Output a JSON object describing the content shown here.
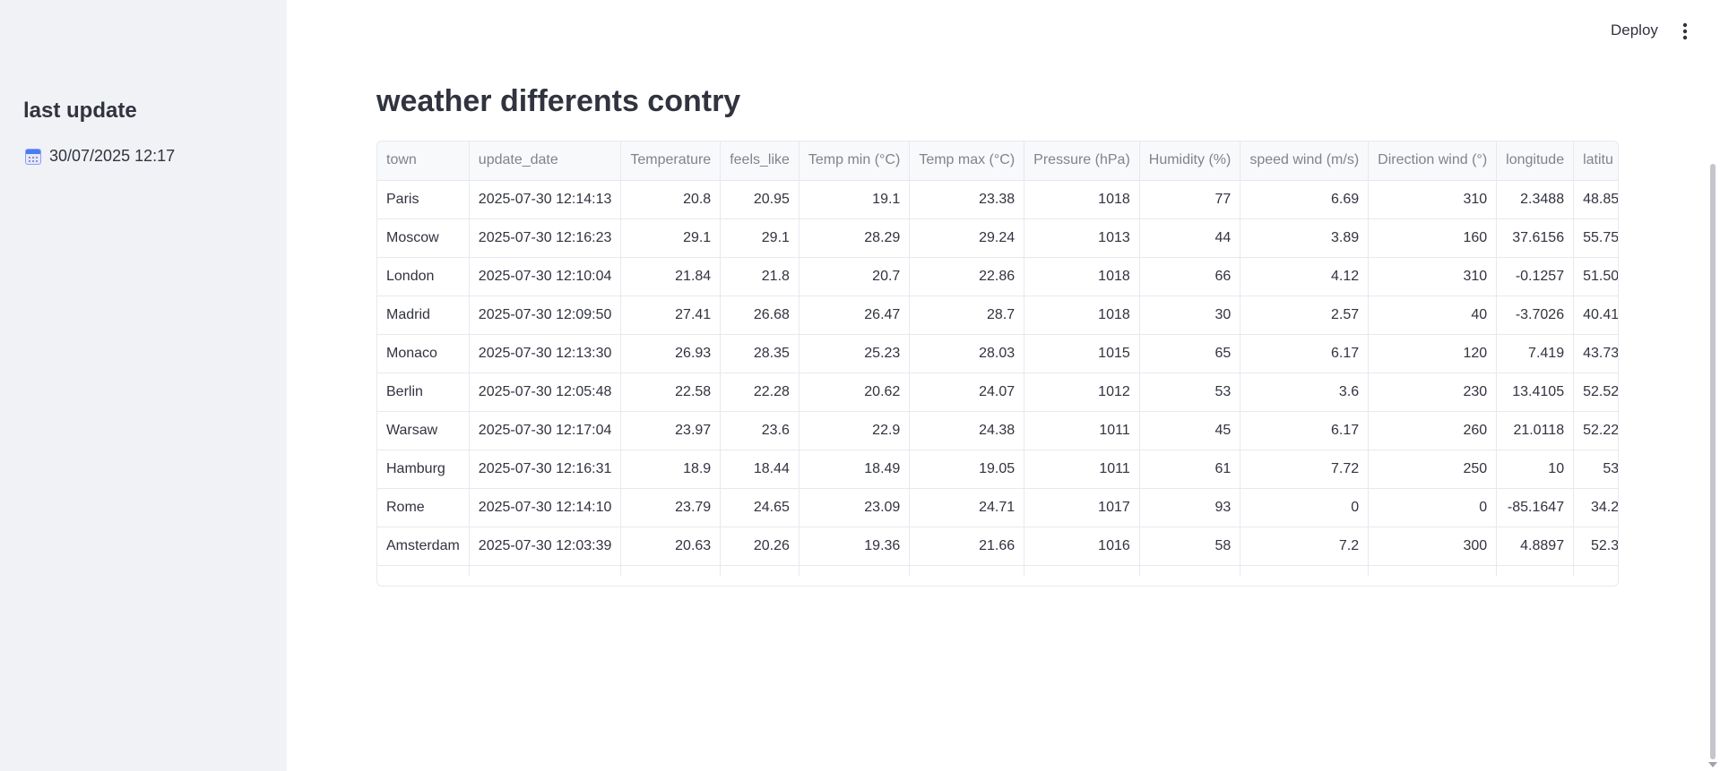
{
  "sidebar": {
    "title": "last update",
    "date": "30/07/2025 12:17",
    "date_icon": "calendar-icon"
  },
  "header": {
    "deploy_label": "Deploy",
    "menu_icon": "more-vertical-icon"
  },
  "main": {
    "title": "weather differents contry"
  },
  "table": {
    "columns": [
      "town",
      "update_date",
      "Temperature",
      "feels_like",
      "Temp min (°C)",
      "Temp max (°C)",
      "Pressure (hPa)",
      "Humidity (%)",
      "speed wind (m/s)",
      "Direction wind (°)",
      "longitude",
      "latitu"
    ],
    "rows": [
      [
        "Paris",
        "2025-07-30 12:14:13",
        "20.8",
        "20.95",
        "19.1",
        "23.38",
        "1018",
        "77",
        "6.69",
        "310",
        "2.3488",
        "48.85"
      ],
      [
        "Moscow",
        "2025-07-30 12:16:23",
        "29.1",
        "29.1",
        "28.29",
        "29.24",
        "1013",
        "44",
        "3.89",
        "160",
        "37.6156",
        "55.75"
      ],
      [
        "London",
        "2025-07-30 12:10:04",
        "21.84",
        "21.8",
        "20.7",
        "22.86",
        "1018",
        "66",
        "4.12",
        "310",
        "-0.1257",
        "51.50"
      ],
      [
        "Madrid",
        "2025-07-30 12:09:50",
        "27.41",
        "26.68",
        "26.47",
        "28.7",
        "1018",
        "30",
        "2.57",
        "40",
        "-3.7026",
        "40.41"
      ],
      [
        "Monaco",
        "2025-07-30 12:13:30",
        "26.93",
        "28.35",
        "25.23",
        "28.03",
        "1015",
        "65",
        "6.17",
        "120",
        "7.419",
        "43.73"
      ],
      [
        "Berlin",
        "2025-07-30 12:05:48",
        "22.58",
        "22.28",
        "20.62",
        "24.07",
        "1012",
        "53",
        "3.6",
        "230",
        "13.4105",
        "52.52"
      ],
      [
        "Warsaw",
        "2025-07-30 12:17:04",
        "23.97",
        "23.6",
        "22.9",
        "24.38",
        "1011",
        "45",
        "6.17",
        "260",
        "21.0118",
        "52.22"
      ],
      [
        "Hamburg",
        "2025-07-30 12:16:31",
        "18.9",
        "18.44",
        "18.49",
        "19.05",
        "1011",
        "61",
        "7.72",
        "250",
        "10",
        "53"
      ],
      [
        "Rome",
        "2025-07-30 12:14:10",
        "23.79",
        "24.65",
        "23.09",
        "24.71",
        "1017",
        "93",
        "0",
        "0",
        "-85.1647",
        "34.2"
      ],
      [
        "Amsterdam",
        "2025-07-30 12:03:39",
        "20.63",
        "20.26",
        "19.36",
        "21.66",
        "1016",
        "58",
        "7.2",
        "300",
        "4.8897",
        "52.3"
      ]
    ]
  }
}
